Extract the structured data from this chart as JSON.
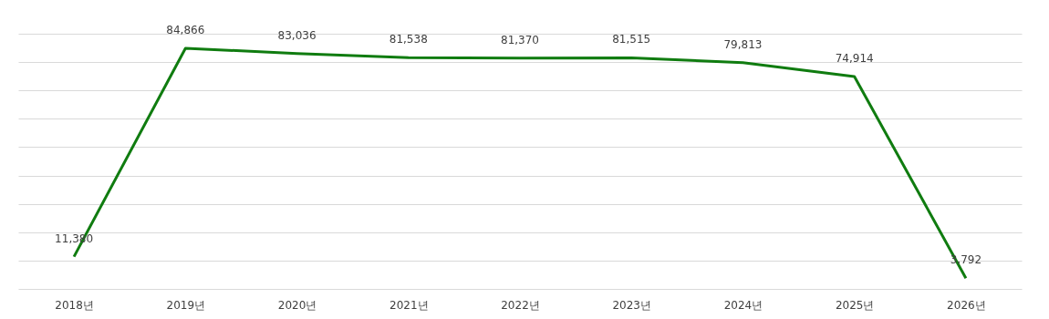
{
  "chart_data": {
    "type": "line",
    "categories": [
      "2018년",
      "2019년",
      "2020년",
      "2021년",
      "2022년",
      "2023년",
      "2024년",
      "2025년",
      "2026년"
    ],
    "series": [
      {
        "color": "#107c10",
        "values": [
          11380,
          84866,
          83036,
          81538,
          81370,
          81515,
          79813,
          74914,
          3792
        ],
        "value_labels": [
          "11,380",
          "84,866",
          "83,036",
          "81,538",
          "81,370",
          "81,515",
          "79,813",
          "74,914",
          "3,792"
        ]
      }
    ],
    "grid": "y",
    "tick_labels": "x",
    "marker": "none",
    "line_style": "solid"
  }
}
